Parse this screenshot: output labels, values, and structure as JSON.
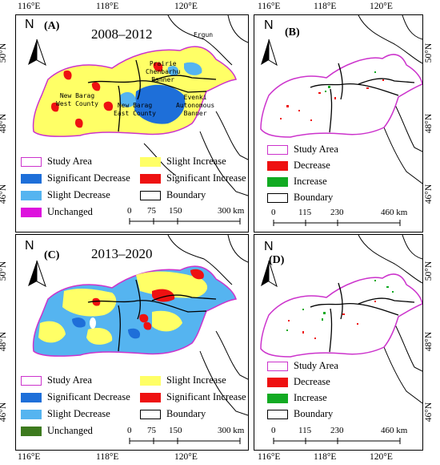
{
  "axes": {
    "left_lon_top": [
      "116°E",
      "118°E",
      "120°E"
    ],
    "left_lon_bottom": [
      "116°E",
      "118°E",
      "120°E"
    ],
    "left_lat_top": [
      "50°N",
      "48°N",
      "46°N"
    ],
    "left_lat_bottom": [
      "50°N",
      "48°N",
      "46°N"
    ],
    "right_lon_top": [
      "116°E",
      "118°E",
      "120°E"
    ],
    "right_lon_bottom": [
      "116°E",
      "118°E",
      "120°E"
    ],
    "right_lat_top": [
      "50°N",
      "48°N",
      "46°N"
    ],
    "right_lat_bottom": [
      "50°N",
      "48°N",
      "46°N"
    ]
  },
  "panels": {
    "A": {
      "label": "(A)",
      "period": "2008–2012",
      "north": "N"
    },
    "B": {
      "label": "(B)",
      "north": "N"
    },
    "C": {
      "label": "(C)",
      "period": "2013–2020",
      "north": "N"
    },
    "D": {
      "label": "(D)",
      "north": "N"
    }
  },
  "places": {
    "ergun": "Ergun",
    "chenbarhu": "Prairie\nChenbarhu\nBanner",
    "new_barag_west": "New Barag\nWest County",
    "new_barag_east": "New Barag\nEast County",
    "evenki": "Evenki\nAutonomous\nBanner"
  },
  "legend_trend": [
    {
      "label": "Study Area",
      "fill": "#ffffff",
      "border": "#cc33cc"
    },
    {
      "label": "Slight Increase",
      "fill": "#ffff66",
      "border": "#ffff66"
    },
    {
      "label": "Significant Decrease",
      "fill": "#1e6fd9",
      "border": "#1e6fd9"
    },
    {
      "label": "Significant Increase",
      "fill": "#ee1111",
      "border": "#ee1111"
    },
    {
      "label": "Slight Decrease",
      "fill": "#55b4f0",
      "border": "#55b4f0"
    },
    {
      "label": "Boundary",
      "fill": "#ffffff",
      "border": "#000000"
    }
  ],
  "legend_unchanged_A": {
    "label": "Unchanged",
    "color": "#dd11dd"
  },
  "legend_unchanged_C": {
    "label": "Unchanged",
    "color": "#3d7a1e"
  },
  "legend_change": [
    {
      "label": "Study Area",
      "fill": "#ffffff",
      "border": "#cc33cc"
    },
    {
      "label": "Decrease",
      "fill": "#ee1111",
      "border": "#ee1111"
    },
    {
      "label": "Increase",
      "fill": "#11aa22",
      "border": "#11aa22"
    },
    {
      "label": "Boundary",
      "fill": "#ffffff",
      "border": "#000000"
    }
  ],
  "scalebar_left": {
    "ticks": [
      "0",
      "75",
      "150",
      "300 km"
    ]
  },
  "scalebar_right": {
    "ticks": [
      "0",
      "115",
      "230",
      "460 km"
    ]
  }
}
